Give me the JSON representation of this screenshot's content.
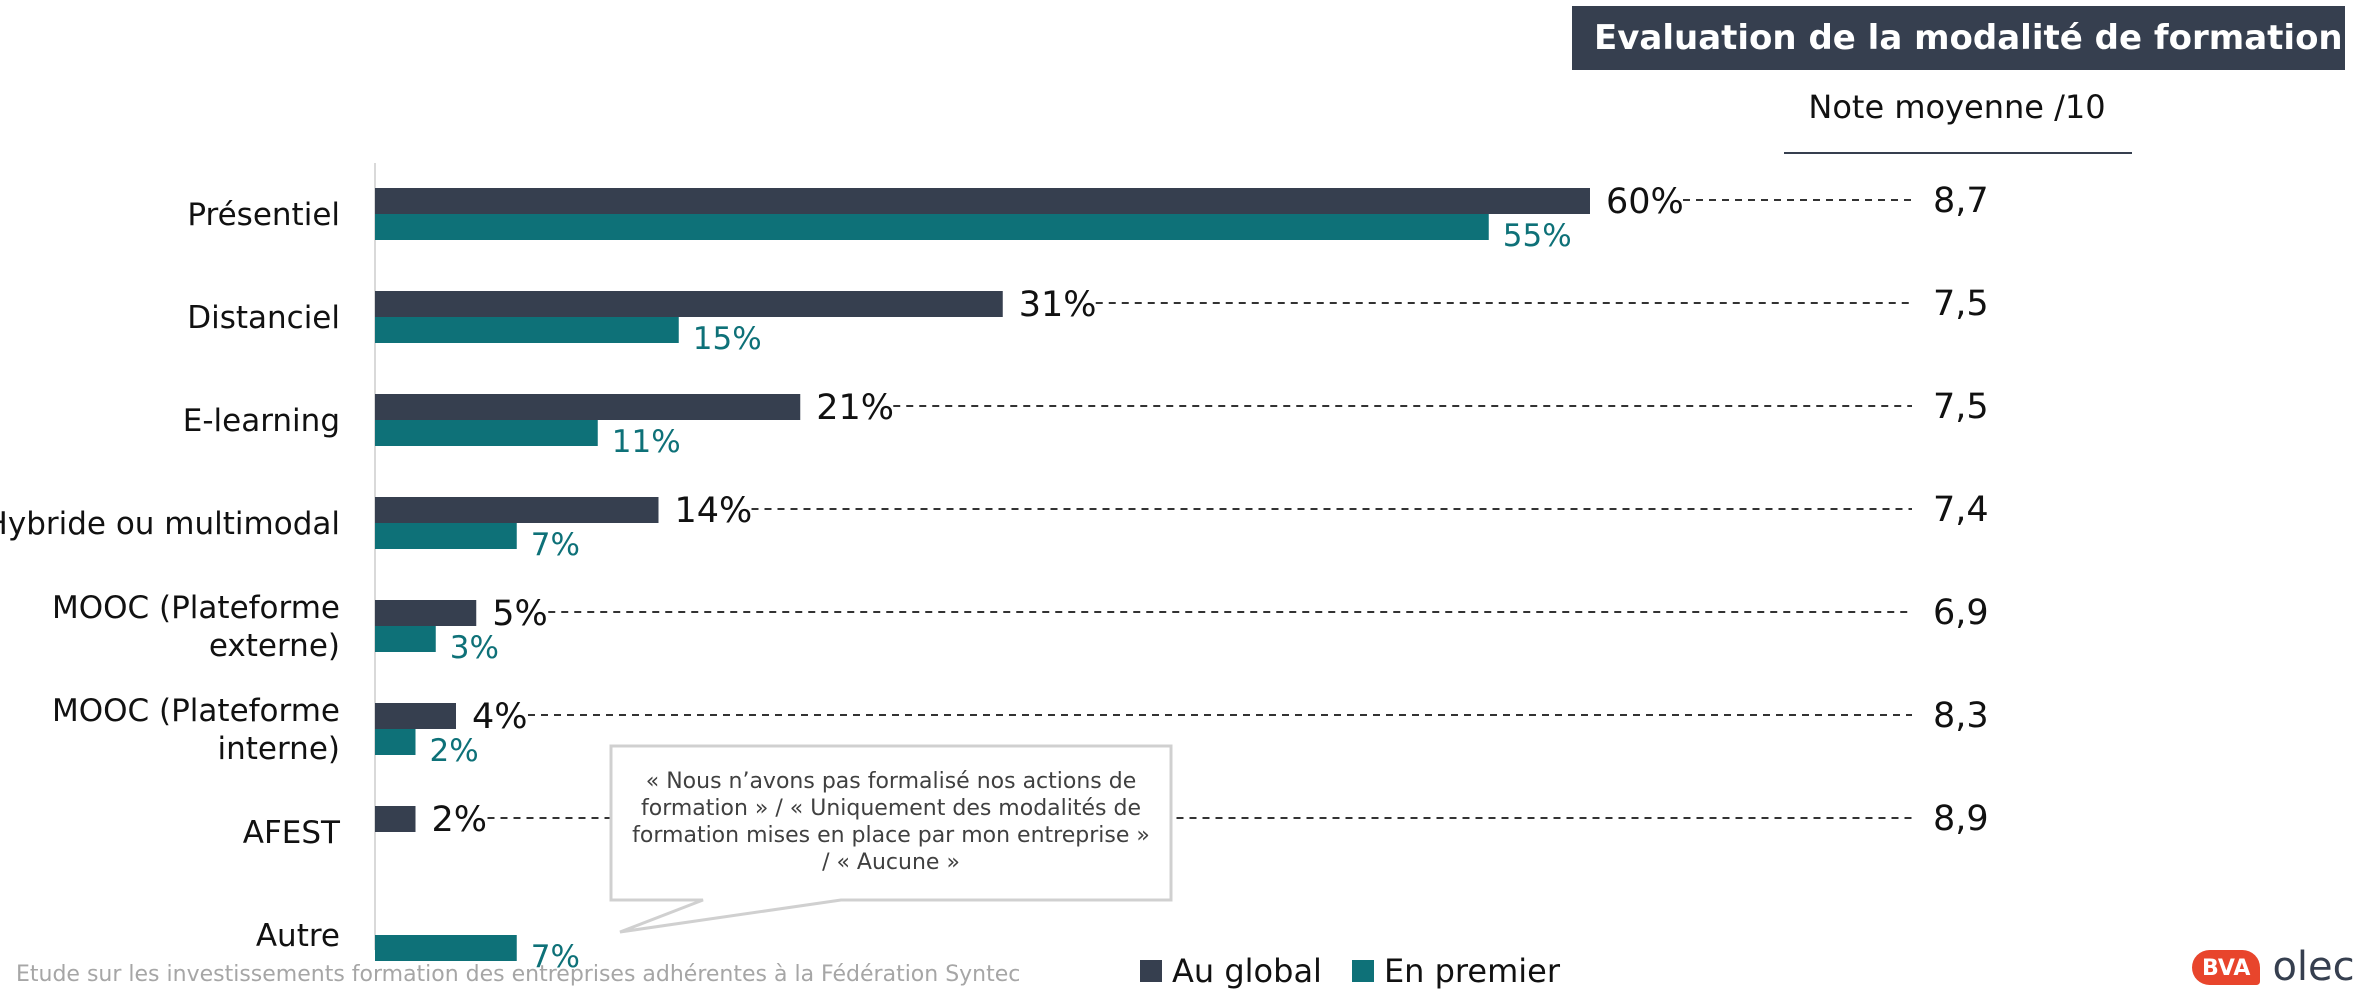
{
  "header": {
    "title": "Evaluation de la modalité de formation",
    "note_label": "Note moyenne /10"
  },
  "chart_data": {
    "type": "bar",
    "orientation": "horizontal",
    "categories": [
      "Présentiel",
      "Distanciel",
      "E-learning",
      "Hybride ou multimodal",
      "MOOC (Plateforme externe)",
      "MOOC (Plateforme interne)",
      "AFEST",
      "Autre"
    ],
    "category_lines": [
      [
        "Présentiel"
      ],
      [
        "Distanciel"
      ],
      [
        "E-learning"
      ],
      [
        "Hybride ou multimodal"
      ],
      [
        "MOOC (Plateforme",
        "externe)"
      ],
      [
        "MOOC (Plateforme",
        "interne)"
      ],
      [
        "AFEST"
      ],
      [
        "Autre"
      ]
    ],
    "series": [
      {
        "name": "Au global",
        "color": "#363f4f",
        "values": [
          60,
          31,
          21,
          14,
          5,
          4,
          2,
          null
        ],
        "labels": [
          "60%",
          "31%",
          "21%",
          "14%",
          "5%",
          "4%",
          "2%",
          ""
        ]
      },
      {
        "name": "En premier",
        "color": "#0e7178",
        "values": [
          55,
          15,
          11,
          7,
          3,
          2,
          null,
          7
        ],
        "labels": [
          "55%",
          "15%",
          "11%",
          "7%",
          "3%",
          "2%",
          "",
          "7%"
        ]
      }
    ],
    "notes": [
      "8,7",
      "7,5",
      "7,5",
      "7,4",
      "6,9",
      "8,3",
      "8,9",
      ""
    ],
    "xlim": [
      0,
      60
    ],
    "grid": false,
    "legend_position": "bottom"
  },
  "callout": {
    "text": "« Nous n’avons pas formalisé nos actions de formation » / « Uniquement des modalités de formation mises en place par mon entreprise » / « Aucune »"
  },
  "footer": {
    "text": "Etude sur les investissements formation des entreprises adhérentes à la Fédération Syntec"
  },
  "logo": {
    "badge": "BVA",
    "text": "olec"
  }
}
